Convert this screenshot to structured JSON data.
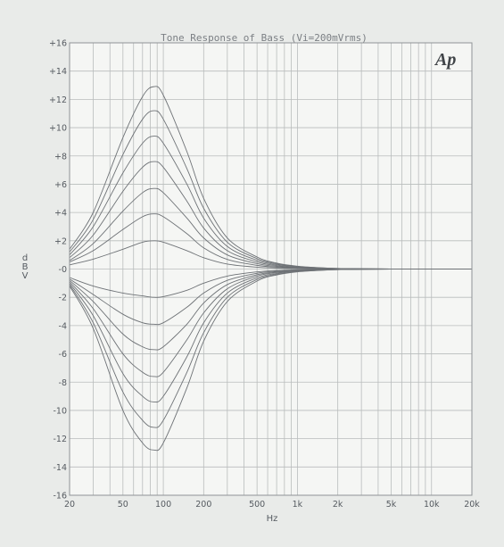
{
  "chart_data": {
    "type": "line",
    "title": "Tone Response of Bass (Vi=200mVrms)",
    "xlabel": "Hz",
    "ylabel": "dBV",
    "x_scale": "log",
    "xlim": [
      20,
      20000
    ],
    "ylim": [
      -16,
      16
    ],
    "grid": true,
    "legend": "none",
    "logo": "Ap",
    "x_ticks": [
      20,
      50,
      100,
      200,
      500,
      1000,
      2000,
      5000,
      10000,
      20000
    ],
    "x_tick_labels": [
      "20",
      "50",
      "100",
      "200",
      "500",
      "1k",
      "2k",
      "5k",
      "10k",
      "20k"
    ],
    "y_ticks": [
      -16,
      -14,
      -12,
      -10,
      -8,
      -6,
      -4,
      -2,
      0,
      2,
      4,
      6,
      8,
      10,
      12,
      14,
      16
    ],
    "y_tick_labels": [
      "-16",
      "-14",
      "-12",
      "-10",
      "-8",
      "-6",
      "-4",
      "-2",
      "-0",
      "+2",
      "+4",
      "+6",
      "+8",
      "+10",
      "+12",
      "+14",
      "+16"
    ],
    "x": [
      20,
      30,
      50,
      70,
      85,
      100,
      150,
      200,
      300,
      500,
      700,
      1000,
      1500,
      2000,
      3000,
      5000,
      10000
    ],
    "series": [
      {
        "values": [
          1.4,
          4.0,
          9.3,
          12.2,
          12.9,
          12.3,
          8.3,
          5.0,
          2.2,
          0.85,
          0.42,
          0.2,
          0.09,
          0.04,
          0.02,
          0.0,
          0.0
        ]
      },
      {
        "values": [
          1.2,
          3.5,
          8.1,
          10.6,
          11.2,
          10.6,
          7.1,
          4.3,
          1.9,
          0.74,
          0.37,
          0.17,
          0.08,
          0.04,
          0.02,
          0.0,
          0.0
        ]
      },
      {
        "values": [
          1.0,
          3.0,
          6.8,
          8.9,
          9.4,
          8.9,
          6.0,
          3.6,
          1.6,
          0.62,
          0.31,
          0.14,
          0.07,
          0.03,
          0.01,
          0.0,
          0.0
        ]
      },
      {
        "values": [
          0.8,
          2.4,
          5.5,
          7.2,
          7.6,
          7.2,
          4.8,
          2.9,
          1.3,
          0.5,
          0.25,
          0.11,
          0.05,
          0.02,
          0.01,
          0.0,
          0.0
        ]
      },
      {
        "values": [
          0.6,
          1.8,
          4.1,
          5.4,
          5.7,
          5.4,
          3.6,
          2.2,
          1.0,
          0.38,
          0.19,
          0.09,
          0.04,
          0.02,
          0.01,
          0.0,
          0.0
        ]
      },
      {
        "values": [
          0.5,
          1.3,
          2.8,
          3.7,
          3.9,
          3.7,
          2.5,
          1.5,
          0.68,
          0.26,
          0.13,
          0.06,
          0.03,
          0.01,
          0.0,
          0.0,
          0.0
        ]
      },
      {
        "values": [
          0.3,
          0.7,
          1.4,
          1.9,
          2.0,
          1.9,
          1.3,
          0.8,
          0.35,
          0.13,
          0.07,
          0.03,
          0.01,
          0.0,
          0.0,
          0.0,
          0.0
        ]
      },
      {
        "values": [
          -0.6,
          -1.2,
          -1.7,
          -1.9,
          -2.0,
          -1.95,
          -1.5,
          -1.0,
          -0.5,
          -0.2,
          -0.1,
          -0.05,
          -0.02,
          -0.01,
          0.0,
          0.0,
          0.0
        ]
      },
      {
        "values": [
          -0.7,
          -1.8,
          -3.2,
          -3.8,
          -3.9,
          -3.8,
          -2.7,
          -1.7,
          -0.8,
          -0.3,
          -0.15,
          -0.07,
          -0.03,
          -0.01,
          0.0,
          0.0,
          0.0
        ]
      },
      {
        "values": [
          -0.8,
          -2.3,
          -4.6,
          -5.5,
          -5.7,
          -5.5,
          -3.9,
          -2.4,
          -1.1,
          -0.4,
          -0.2,
          -0.09,
          -0.04,
          -0.02,
          0.0,
          0.0,
          0.0
        ]
      },
      {
        "values": [
          -0.9,
          -2.8,
          -6.0,
          -7.3,
          -7.6,
          -7.3,
          -5.0,
          -3.1,
          -1.4,
          -0.5,
          -0.25,
          -0.11,
          -0.05,
          -0.02,
          -0.01,
          0.0,
          0.0
        ]
      },
      {
        "values": [
          -1.0,
          -3.3,
          -7.4,
          -9.0,
          -9.4,
          -9.0,
          -6.2,
          -3.8,
          -1.7,
          -0.62,
          -0.31,
          -0.14,
          -0.07,
          -0.03,
          -0.01,
          0.0,
          0.0
        ]
      },
      {
        "values": [
          -1.1,
          -3.8,
          -8.7,
          -10.7,
          -11.2,
          -10.7,
          -7.3,
          -4.5,
          -2.0,
          -0.74,
          -0.37,
          -0.17,
          -0.08,
          -0.04,
          -0.02,
          0.0,
          0.0
        ]
      },
      {
        "values": [
          -1.2,
          -4.2,
          -10.0,
          -12.3,
          -12.8,
          -12.3,
          -8.4,
          -5.1,
          -2.3,
          -0.85,
          -0.42,
          -0.2,
          -0.09,
          -0.04,
          -0.02,
          0.0,
          0.0
        ]
      }
    ]
  },
  "colors": {
    "background": "#e9ebe9",
    "plot_area": "#f5f6f4",
    "grid": "#b9bcbc",
    "frame": "#8f9396",
    "curve": "#6e7276",
    "text": "#555a60"
  }
}
